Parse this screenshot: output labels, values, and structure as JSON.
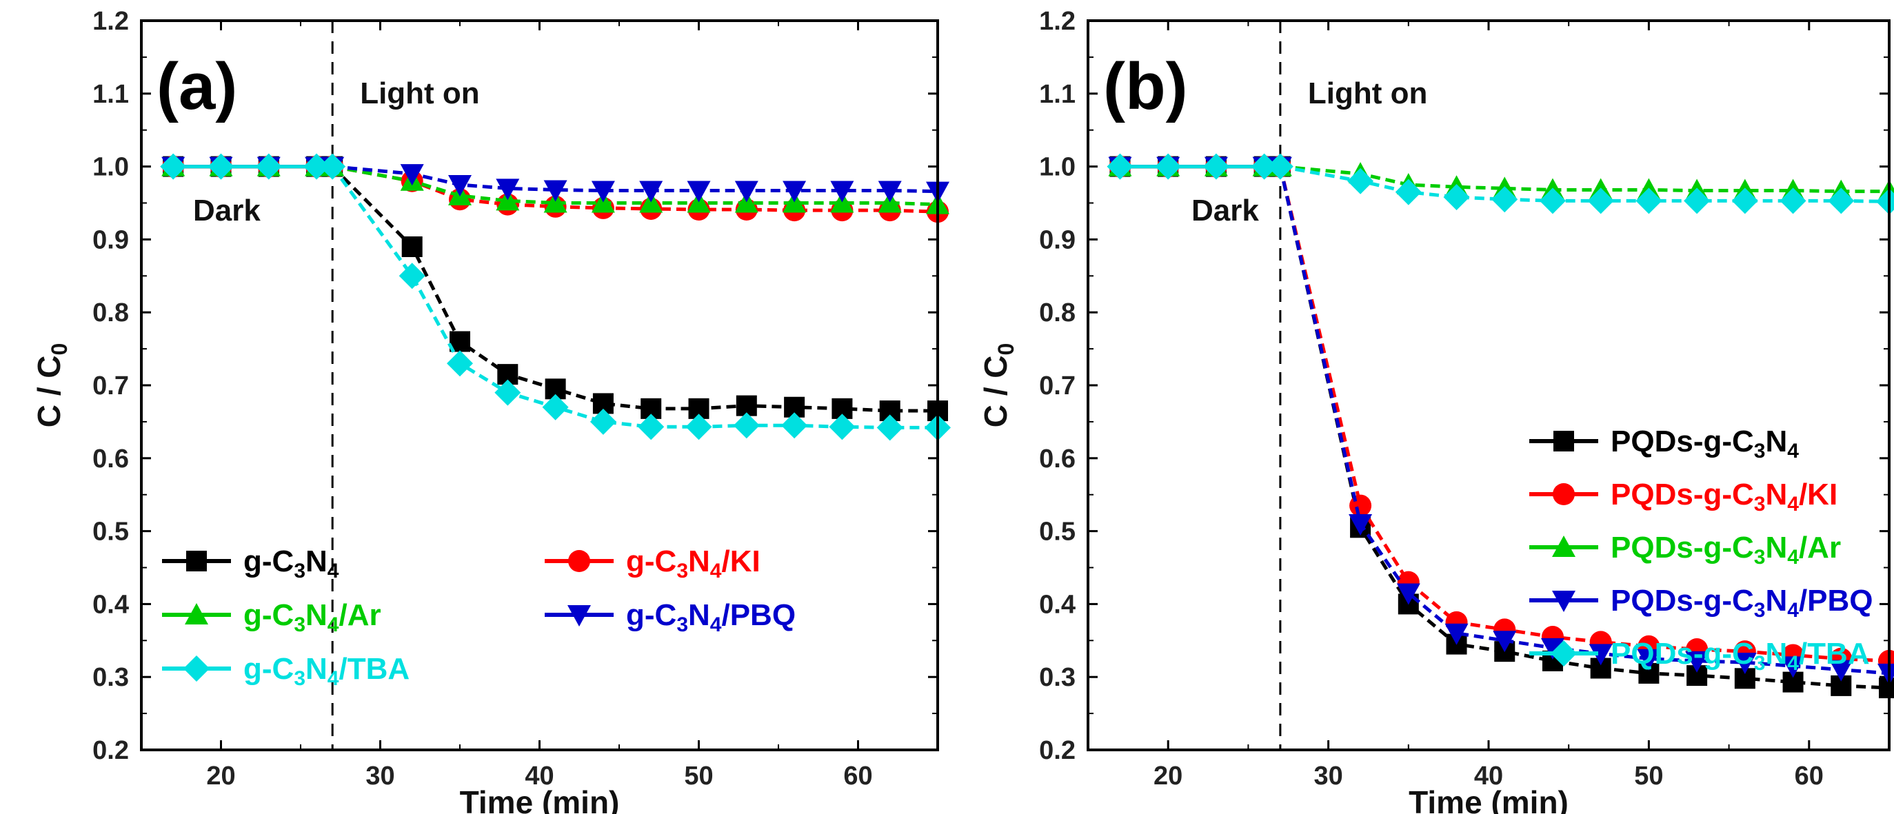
{
  "chart_data": [
    {
      "type": "line",
      "panel_label": "(a)",
      "xlabel": "Time (min)",
      "ylabel": "C / C0",
      "xlim": [
        15,
        65
      ],
      "ylim": [
        0.2,
        1.2
      ],
      "xticks": [
        20,
        30,
        40,
        50,
        60
      ],
      "yticks": [
        0.2,
        0.3,
        0.4,
        0.5,
        0.6,
        0.7,
        0.8,
        0.9,
        1.0,
        1.1,
        1.2
      ],
      "annotations": {
        "light_on": "Light on",
        "dark": "Dark",
        "light_on_x": 27
      },
      "legend": {
        "layout": "two-column",
        "placement": "bottom-left"
      },
      "x": [
        17,
        20,
        23,
        26,
        27,
        32,
        35,
        38,
        41,
        44,
        47,
        50,
        53,
        56,
        59,
        62,
        65
      ],
      "series": [
        {
          "name": "g-C3N4",
          "label_parts": [
            "g-C",
            "3",
            "N",
            "4",
            ""
          ],
          "color": "#000000",
          "marker": "square",
          "values": [
            1.0,
            1.0,
            1.0,
            1.0,
            1.0,
            0.89,
            0.76,
            0.715,
            0.695,
            0.675,
            0.668,
            0.668,
            0.672,
            0.67,
            0.668,
            0.665,
            0.665
          ]
        },
        {
          "name": "g-C3N4/KI",
          "label_parts": [
            "g-C",
            "3",
            "N",
            "4",
            "/KI"
          ],
          "color": "#ff0000",
          "marker": "circle",
          "values": [
            1.0,
            1.0,
            1.0,
            1.0,
            1.0,
            0.98,
            0.955,
            0.948,
            0.945,
            0.943,
            0.942,
            0.941,
            0.941,
            0.94,
            0.94,
            0.94,
            0.938
          ]
        },
        {
          "name": "g-C3N4/Ar",
          "label_parts": [
            "g-C",
            "3",
            "N",
            "4",
            "/Ar"
          ],
          "color": "#00cc00",
          "marker": "triangle-up",
          "values": [
            1.0,
            1.0,
            1.0,
            1.0,
            1.0,
            0.98,
            0.96,
            0.953,
            0.95,
            0.95,
            0.95,
            0.95,
            0.95,
            0.95,
            0.95,
            0.95,
            0.948
          ]
        },
        {
          "name": "g-C3N4/PBQ",
          "label_parts": [
            "g-C",
            "3",
            "N",
            "4",
            "/PBQ"
          ],
          "color": "#0000cc",
          "marker": "triangle-down",
          "values": [
            1.0,
            1.0,
            1.0,
            1.0,
            1.0,
            0.99,
            0.975,
            0.97,
            0.968,
            0.967,
            0.967,
            0.967,
            0.967,
            0.967,
            0.967,
            0.967,
            0.966
          ]
        },
        {
          "name": "g-C3N4/TBA",
          "label_parts": [
            "g-C",
            "3",
            "N",
            "4",
            "/TBA"
          ],
          "color": "#00e0e0",
          "marker": "diamond",
          "values": [
            1.0,
            1.0,
            1.0,
            1.0,
            1.0,
            0.85,
            0.73,
            0.69,
            0.67,
            0.65,
            0.643,
            0.643,
            0.645,
            0.645,
            0.643,
            0.642,
            0.642
          ]
        }
      ]
    },
    {
      "type": "line",
      "panel_label": "(b)",
      "xlabel": "Time (min)",
      "ylabel": "C / C0",
      "xlim": [
        15,
        65
      ],
      "ylim": [
        0.2,
        1.2
      ],
      "xticks": [
        20,
        30,
        40,
        50,
        60
      ],
      "yticks": [
        0.2,
        0.3,
        0.4,
        0.5,
        0.6,
        0.7,
        0.8,
        0.9,
        1.0,
        1.1,
        1.2
      ],
      "annotations": {
        "light_on": "Light on",
        "dark": "Dark",
        "light_on_x": 27
      },
      "legend": {
        "layout": "one-column",
        "placement": "middle-right"
      },
      "x": [
        17,
        20,
        23,
        26,
        27,
        32,
        35,
        38,
        41,
        44,
        47,
        50,
        53,
        56,
        59,
        62,
        65
      ],
      "series": [
        {
          "name": "PQDs-g-C3N4",
          "label_parts": [
            "PQDs-g-C",
            "3",
            "N",
            "4",
            ""
          ],
          "color": "#000000",
          "marker": "square",
          "values": [
            1.0,
            1.0,
            1.0,
            1.0,
            1.0,
            0.505,
            0.4,
            0.345,
            0.335,
            0.322,
            0.312,
            0.305,
            0.302,
            0.298,
            0.293,
            0.288,
            0.285
          ]
        },
        {
          "name": "PQDs-g-C3N4/KI",
          "label_parts": [
            "PQDs-g-C",
            "3",
            "N",
            "4",
            "/KI"
          ],
          "color": "#ff0000",
          "marker": "circle",
          "values": [
            1.0,
            1.0,
            1.0,
            1.0,
            1.0,
            0.535,
            0.43,
            0.375,
            0.365,
            0.355,
            0.348,
            0.342,
            0.338,
            0.335,
            0.33,
            0.325,
            0.322
          ]
        },
        {
          "name": "PQDs-g-C3N4/Ar",
          "label_parts": [
            "PQDs-g-C",
            "3",
            "N",
            "4",
            "/Ar"
          ],
          "color": "#00cc00",
          "marker": "triangle-up",
          "values": [
            1.0,
            1.0,
            1.0,
            1.0,
            1.0,
            0.99,
            0.975,
            0.972,
            0.97,
            0.968,
            0.968,
            0.968,
            0.967,
            0.967,
            0.967,
            0.966,
            0.966
          ]
        },
        {
          "name": "PQDs-g-C3N4/PBQ",
          "label_parts": [
            "PQDs-g-C",
            "3",
            "N",
            "4",
            "/PBQ"
          ],
          "color": "#0000cc",
          "marker": "triangle-down",
          "values": [
            1.0,
            1.0,
            1.0,
            1.0,
            1.0,
            0.51,
            0.415,
            0.36,
            0.35,
            0.34,
            0.332,
            0.325,
            0.322,
            0.32,
            0.315,
            0.31,
            0.305
          ]
        },
        {
          "name": "PQDs-g-C3N4/TBA",
          "label_parts": [
            "PQDs-g-C",
            "3",
            "N",
            "4",
            "/TBA"
          ],
          "color": "#00e0e0",
          "marker": "diamond",
          "values": [
            1.0,
            1.0,
            1.0,
            1.0,
            1.0,
            0.98,
            0.965,
            0.958,
            0.955,
            0.953,
            0.953,
            0.953,
            0.953,
            0.953,
            0.953,
            0.953,
            0.952
          ]
        }
      ]
    }
  ]
}
